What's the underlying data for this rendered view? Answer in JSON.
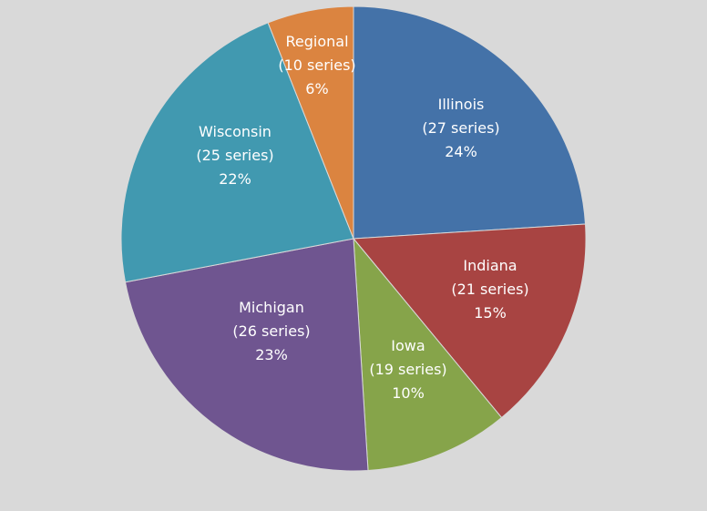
{
  "chart_data": {
    "type": "pie",
    "background": "#d9d9d9",
    "label_color": "#ffffff",
    "start_angle_deg": 0,
    "direction": "clockwise",
    "slices": [
      {
        "name": "Illinois",
        "series_label": "(27 series)",
        "percent_label": "24%",
        "value": 24,
        "color": "#4472a8"
      },
      {
        "name": "Indiana",
        "series_label": "(21 series)",
        "percent_label": "15%",
        "value": 15,
        "color": "#a84442"
      },
      {
        "name": "Iowa",
        "series_label": "(19 series)",
        "percent_label": "10%",
        "value": 10,
        "color": "#86a44a"
      },
      {
        "name": "Michigan",
        "series_label": "(26 series)",
        "percent_label": "23%",
        "value": 23,
        "color": "#6f5590"
      },
      {
        "name": "Wisconsin",
        "series_label": "(25 series)",
        "percent_label": "22%",
        "value": 22,
        "color": "#4199b0"
      },
      {
        "name": "Regional",
        "series_label": "(10 series)",
        "percent_label": "6%",
        "value": 6,
        "color": "#db8440"
      }
    ]
  }
}
